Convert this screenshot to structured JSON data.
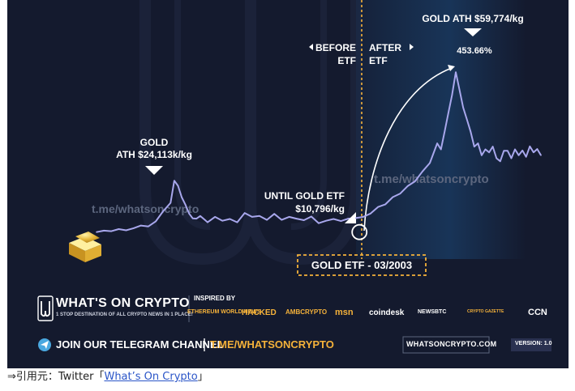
{
  "chart_data": {
    "type": "line",
    "title": "",
    "xlabel": "",
    "ylabel": "",
    "series": [
      {
        "x": [
          0,
          2,
          4,
          6,
          8,
          10,
          12,
          14,
          16,
          18,
          20,
          21,
          22,
          23,
          24,
          25,
          26,
          27,
          28,
          30,
          32,
          34,
          36,
          38,
          40,
          42,
          44,
          46,
          48,
          50,
          52,
          54,
          56,
          58,
          60,
          62,
          64,
          66,
          68,
          70,
          72,
          74,
          76,
          78,
          80,
          82,
          84,
          86,
          88,
          90,
          92,
          93,
          94,
          95,
          96,
          97,
          98,
          99,
          100,
          101,
          102,
          103,
          104,
          105,
          106,
          107,
          108,
          109,
          110,
          111,
          112,
          113,
          114,
          115,
          116,
          117,
          118,
          119,
          120
        ],
        "y": [
          6.3,
          6.8,
          6.6,
          7.3,
          6.9,
          7.6,
          8.5,
          8.2,
          9.9,
          13.3,
          16.1,
          23.5,
          21.8,
          18.0,
          15.5,
          12.5,
          10.9,
          10.8,
          11.7,
          9.6,
          11.4,
          10.1,
          10.7,
          9.6,
          12.7,
          11.4,
          11.7,
          10.4,
          12.4,
          10.4,
          11.4,
          10.8,
          10.3,
          11.5,
          9.3,
          10.1,
          10.7,
          10.0,
          10.8,
          11.0,
          11.4,
          12.5,
          14.7,
          15.6,
          18.0,
          19.2,
          21.7,
          23.3,
          26.6,
          29.4,
          36.0,
          34.0,
          40.0,
          46.1,
          52.2,
          59.8,
          54.0,
          48.0,
          44.0,
          40.0,
          34.9,
          36.0,
          32.0,
          34.0,
          33.0,
          34.9,
          31.0,
          30.0,
          33.5,
          33.5,
          31.0,
          34.0,
          32.0,
          33.6,
          31.5,
          35.0,
          33.0,
          34.1,
          32.0
        ]
      }
    ],
    "xlim": [
      0,
      120
    ],
    "ylim": [
      0,
      65
    ],
    "grid": false,
    "marker_x": 71,
    "annotations": [
      {
        "id": "gold-ath",
        "text_line1": "GOLD",
        "text_line2": "ATH $24,113k/kg"
      },
      {
        "id": "until-etf",
        "text_line1": "UNTIL GOLD ETF",
        "text_line2": "$10,796/kg"
      },
      {
        "id": "ath-2",
        "text_line1": "GOLD ATH $59,774/kg",
        "pct": "453.66%"
      },
      {
        "id": "before",
        "text_line1": "BEFORE",
        "text_line2": "ETF"
      },
      {
        "id": "after",
        "text_line1": "AFTER",
        "text_line2": "ETF"
      },
      {
        "id": "etf-box",
        "text": "GOLD ETF - 03/2003"
      }
    ],
    "watermarks": [
      "t.me/whatsoncrypto",
      "t.me/whatsoncrypto"
    ]
  },
  "brand": {
    "name": "WHAT'S ON CRYPTO",
    "tagline": "1 STOP DESTINATION OF ALL CRYPTO NEWS IN 1 PLACE!",
    "inspired_label": "INSPIRED BY",
    "sponsors": [
      "ETHEREUM WORLD NEWS",
      "HACKED",
      "AMBCRYPTO",
      "msn",
      "coindesk",
      "NEWSBTC",
      "CRYPTO GAZETTE",
      "CCN"
    ],
    "telegram_text": "JOIN OUR TELEGRAM CHANNEL",
    "telegram_link": "T.ME/WHATSONCRYPTO",
    "site": "WHATSONCRYPTO.COM",
    "version": "VERSION: 1.0"
  },
  "footer": {
    "prefix": "⇒引用元：Twitter「",
    "link_text": "What’s On Crypto",
    "suffix": "」"
  },
  "colors": {
    "background": "#141a2e",
    "line": "#a8a7ec",
    "accent": "#f5b23a",
    "glow": "#1c4a7a"
  }
}
